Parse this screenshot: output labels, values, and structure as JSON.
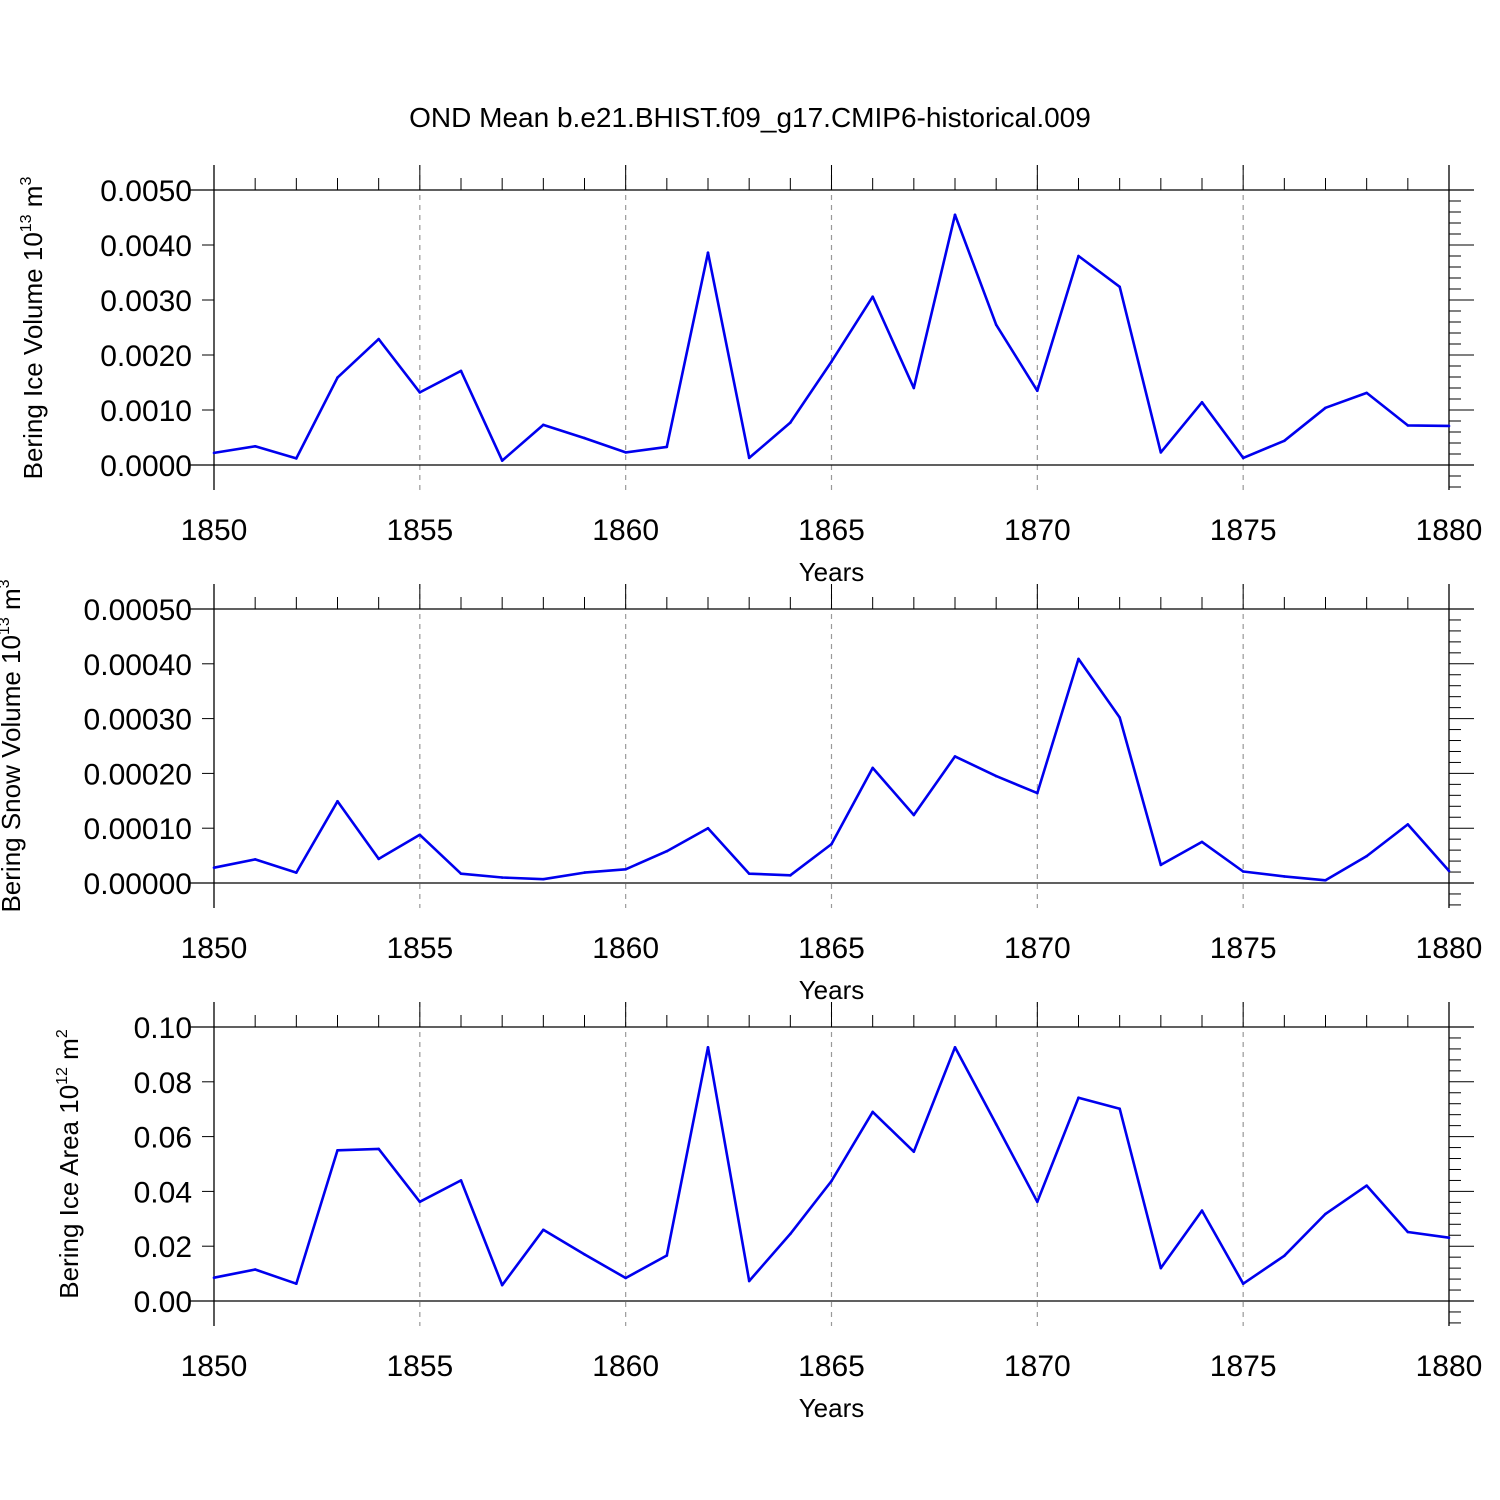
{
  "title": "OND Mean b.e21.BHIST.f09_g17.CMIP6-historical.009",
  "colors": {
    "line": "#0000ee",
    "axis": "#000000",
    "grid": "#999999"
  },
  "chart_data": [
    {
      "type": "line",
      "title": "OND Mean b.e21.BHIST.f09_g17.CMIP6-historical.009",
      "xlabel": "Years",
      "ylabel": {
        "text": "Bering Ice Volume 10",
        "sup": "13",
        "unit": " m",
        "unit_sup": "3"
      },
      "xlim": [
        1850,
        1880
      ],
      "ylim": [
        0,
        0.005
      ],
      "x_ticks": [
        "1850",
        "1855",
        "1860",
        "1865",
        "1870",
        "1875",
        "1880"
      ],
      "y_ticks": [
        "0.0000",
        "0.0010",
        "0.0020",
        "0.0030",
        "0.0040",
        "0.0050"
      ],
      "grid": "vertical dashed at major x ticks",
      "series": [
        {
          "name": "Bering Ice Volume",
          "x": [
            1850,
            1851,
            1852,
            1853,
            1854,
            1855,
            1856,
            1857,
            1858,
            1859,
            1860,
            1861,
            1862,
            1863,
            1864,
            1865,
            1866,
            1867,
            1868,
            1869,
            1870,
            1871,
            1872,
            1873,
            1874,
            1875,
            1876,
            1877,
            1878,
            1879,
            1880
          ],
          "values": [
            0.00022,
            0.00034,
            0.00012,
            0.00159,
            0.00229,
            0.00132,
            0.00171,
            8e-05,
            0.00073,
            0.00049,
            0.00023,
            0.00033,
            0.00386,
            0.00013,
            0.00077,
            0.00188,
            0.00306,
            0.0014,
            0.00455,
            0.00255,
            0.00135,
            0.0038,
            0.00324,
            0.00023,
            0.00114,
            0.00013,
            0.00044,
            0.00104,
            0.00131,
            0.00072,
            0.00071
          ]
        }
      ]
    },
    {
      "type": "line",
      "xlabel": "Years",
      "ylabel": {
        "text": "Bering Snow Volume 10",
        "sup": "13",
        "unit": " m",
        "unit_sup": "3"
      },
      "xlim": [
        1850,
        1880
      ],
      "ylim": [
        0,
        0.0005
      ],
      "x_ticks": [
        "1850",
        "1855",
        "1860",
        "1865",
        "1870",
        "1875",
        "1880"
      ],
      "y_ticks": [
        "0.00000",
        "0.00010",
        "0.00020",
        "0.00030",
        "0.00040",
        "0.00050"
      ],
      "grid": "vertical dashed at major x ticks",
      "series": [
        {
          "name": "Bering Snow Volume",
          "x": [
            1850,
            1851,
            1852,
            1853,
            1854,
            1855,
            1856,
            1857,
            1858,
            1859,
            1860,
            1861,
            1862,
            1863,
            1864,
            1865,
            1866,
            1867,
            1868,
            1869,
            1870,
            1871,
            1872,
            1873,
            1874,
            1875,
            1876,
            1877,
            1878,
            1879,
            1880
          ],
          "values": [
            2.8e-05,
            4.3e-05,
            1.9e-05,
            0.000149,
            4.4e-05,
            8.8e-05,
            1.7e-05,
            1e-05,
            7e-06,
            1.9e-05,
            2.5e-05,
            5.8e-05,
            0.0001,
            1.7e-05,
            1.4e-05,
            7.1e-05,
            0.00021,
            0.000124,
            0.000231,
            0.000195,
            0.000164,
            0.000409,
            0.000302,
            3.3e-05,
            7.5e-05,
            2.1e-05,
            1.2e-05,
            5e-06,
            4.9e-05,
            0.000107,
            2.2e-05
          ]
        }
      ]
    },
    {
      "type": "line",
      "xlabel": "Years",
      "ylabel": {
        "text": "Bering Ice Area 10",
        "sup": "12",
        "unit": " m",
        "unit_sup": "2"
      },
      "xlim": [
        1850,
        1880
      ],
      "ylim": [
        0,
        0.1
      ],
      "x_ticks": [
        "1850",
        "1855",
        "1860",
        "1865",
        "1870",
        "1875",
        "1880"
      ],
      "y_ticks": [
        "0.00",
        "0.02",
        "0.04",
        "0.06",
        "0.08",
        "0.10"
      ],
      "grid": "vertical dashed at major x ticks",
      "series": [
        {
          "name": "Bering Ice Area",
          "x": [
            1850,
            1851,
            1852,
            1853,
            1854,
            1855,
            1856,
            1857,
            1858,
            1859,
            1860,
            1861,
            1862,
            1863,
            1864,
            1865,
            1866,
            1867,
            1868,
            1869,
            1870,
            1871,
            1872,
            1873,
            1874,
            1875,
            1876,
            1877,
            1878,
            1879,
            1880
          ],
          "values": [
            0.0085,
            0.0115,
            0.0063,
            0.055,
            0.0555,
            0.0362,
            0.044,
            0.0058,
            0.026,
            0.017,
            0.0084,
            0.0166,
            0.0926,
            0.0073,
            0.0245,
            0.0438,
            0.069,
            0.0545,
            0.0926,
            0.0645,
            0.0362,
            0.0742,
            0.0702,
            0.012,
            0.033,
            0.0063,
            0.0165,
            0.0318,
            0.0421,
            0.0252,
            0.0231
          ]
        }
      ]
    }
  ]
}
